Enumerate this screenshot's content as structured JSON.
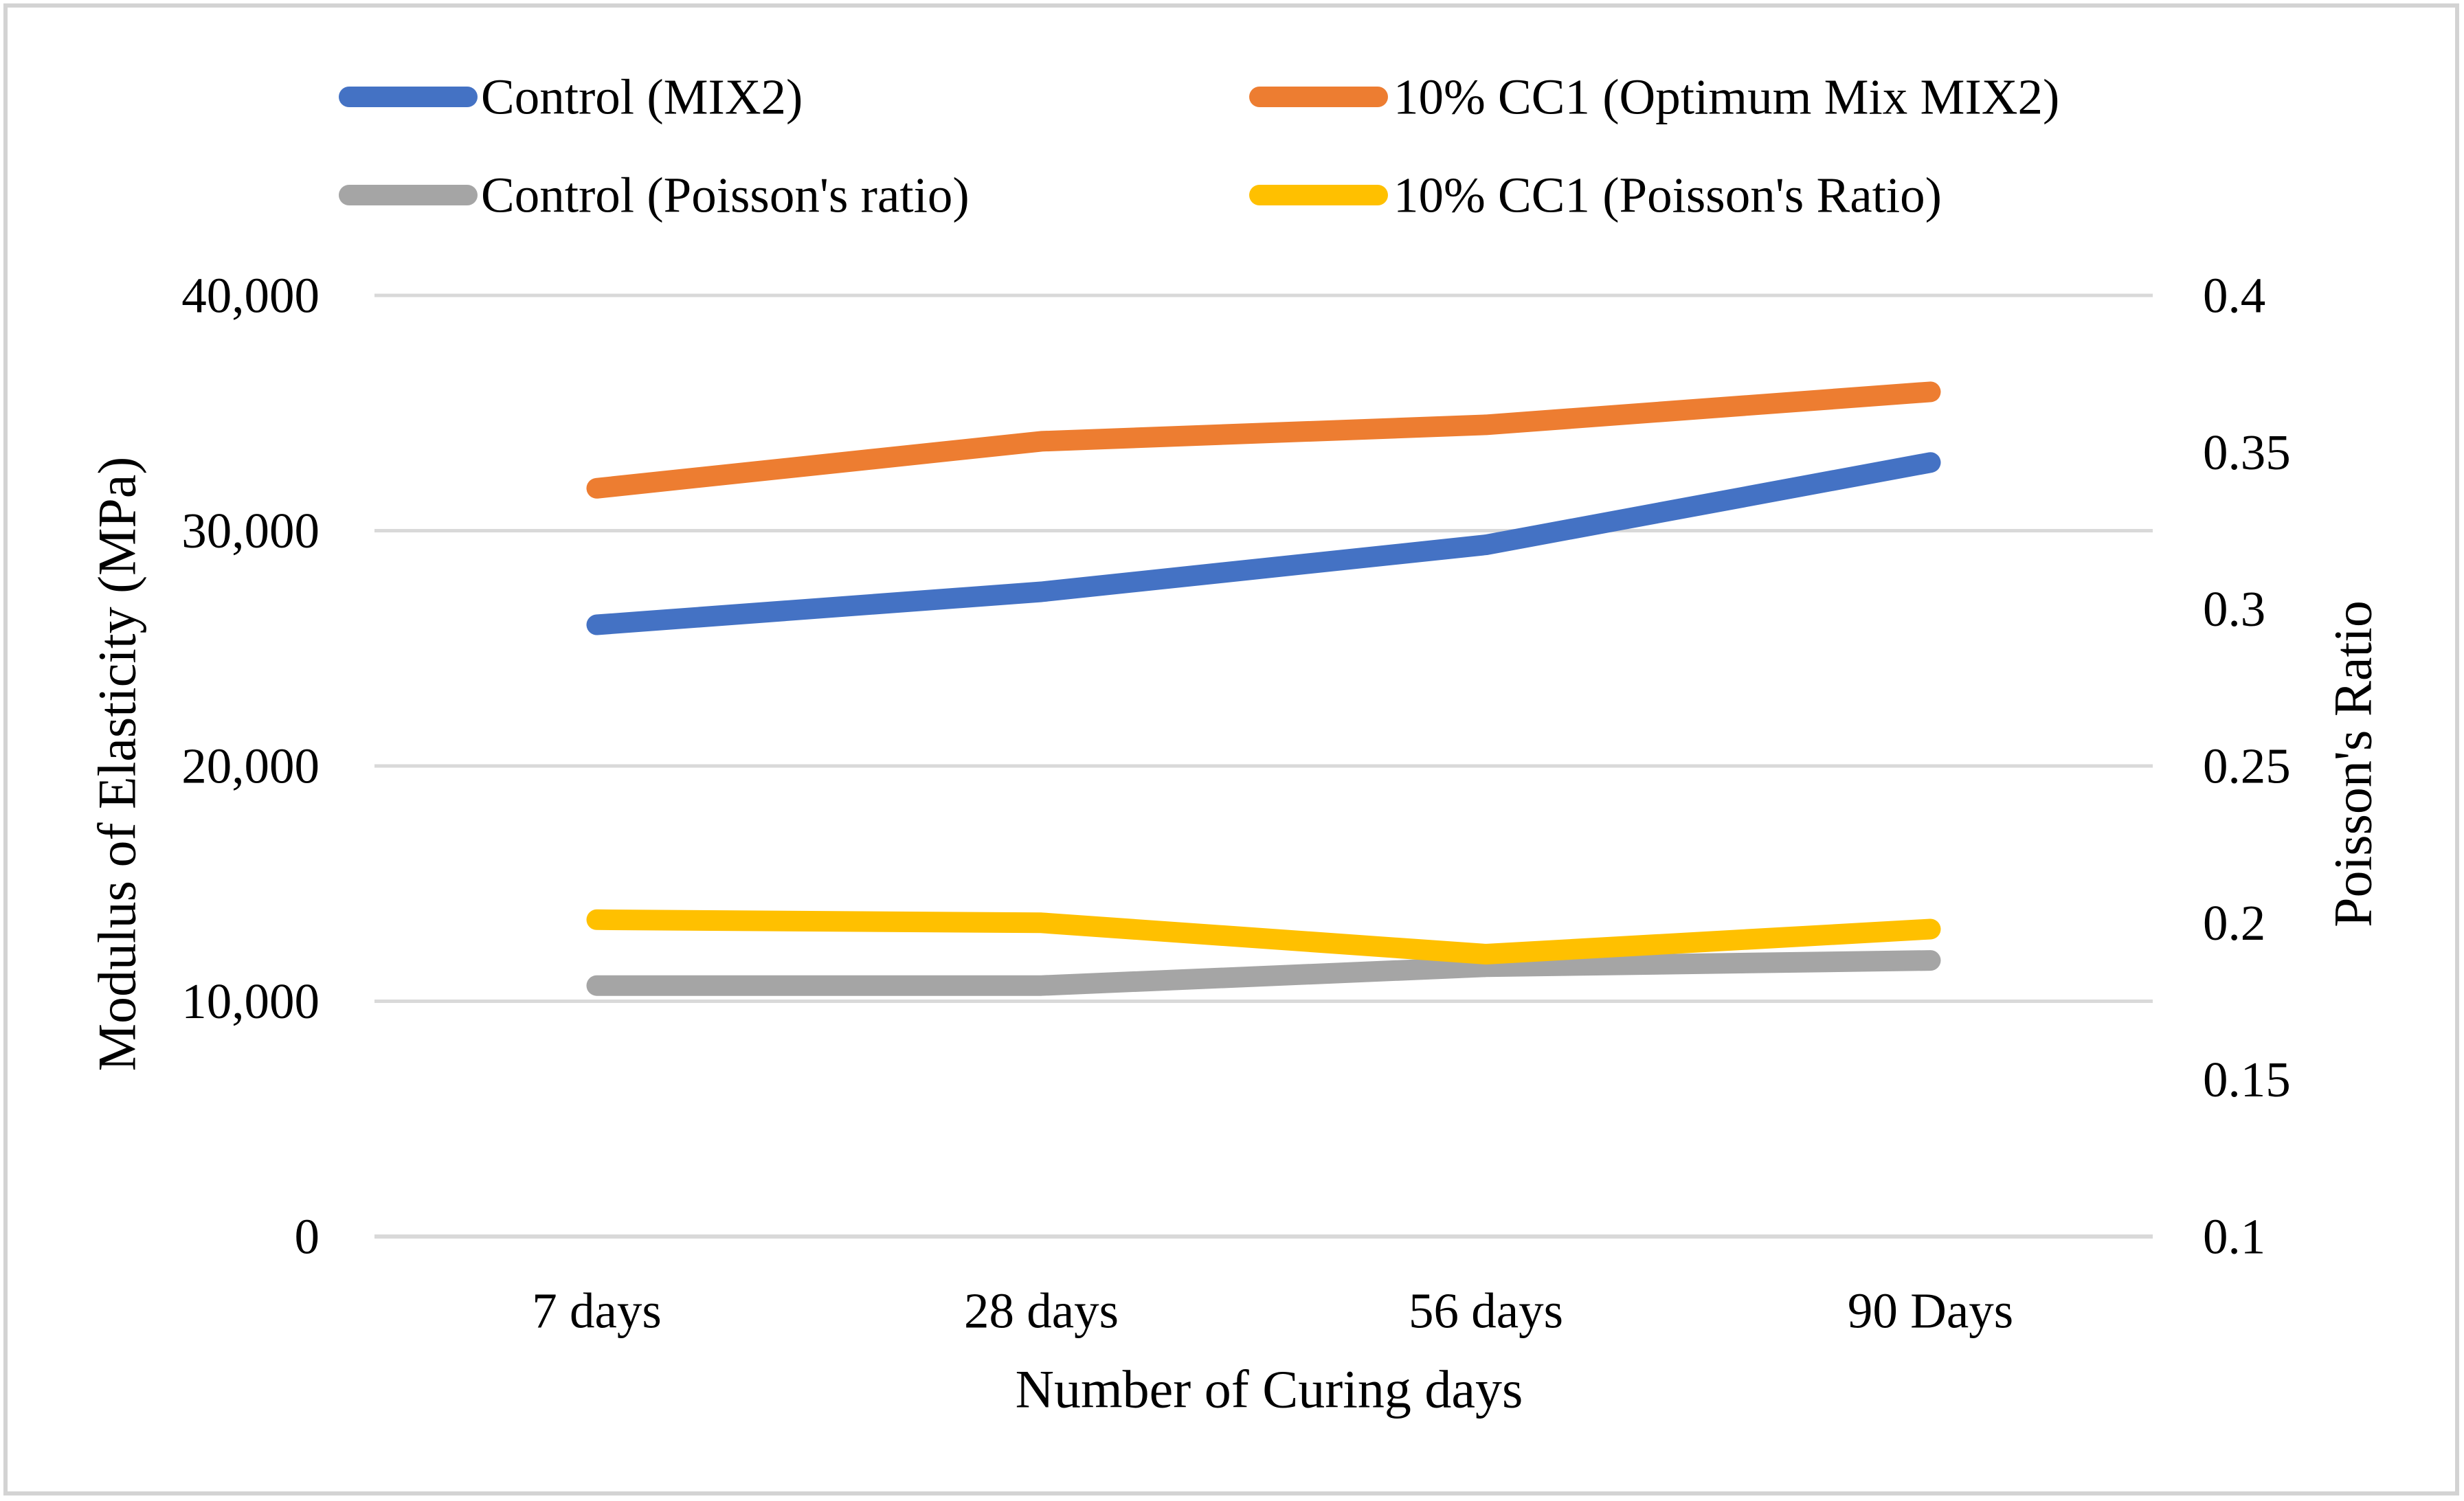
{
  "figure": {
    "background": "#FFFFFF",
    "border_color": "#D3D3D3"
  },
  "chart_data": {
    "type": "line",
    "title": "",
    "categories": [
      "7 days",
      "28 days",
      "56 days",
      "90 Days"
    ],
    "xlabel": "Number of Curing days",
    "ylabel_left": "Modulus of Elasticity (MPa)",
    "ylabel_right": "Poisson's Ratio",
    "grid": "horizontal gridlines at primary-axis ticks",
    "legend_position": "top, two columns by two rows",
    "left_axis": {
      "min": 0,
      "max": 40000,
      "tick_values": [
        40000,
        30000,
        20000,
        10000,
        0
      ],
      "tick_labels": [
        "40,000",
        "30,000",
        "20,000",
        "10,000",
        "0"
      ]
    },
    "right_axis": {
      "min": 0.1,
      "max": 0.4,
      "tick_values": [
        0.4,
        0.35,
        0.3,
        0.25,
        0.2,
        0.15,
        0.1
      ],
      "tick_labels": [
        "0.4",
        "0.35",
        "0.3",
        "0.25",
        "0.2",
        "0.15",
        "0.1"
      ]
    },
    "series": [
      {
        "name": "Control (MIX2)",
        "axis": "left",
        "color": "#4472C4",
        "values": [
          26000,
          27400,
          29400,
          32900
        ]
      },
      {
        "name": "10% CC1 (Optimum Mix MIX2)",
        "axis": "left",
        "color": "#ED7D31",
        "values": [
          31800,
          33800,
          34500,
          35900
        ]
      },
      {
        "name": "Control (Poisson's ratio)",
        "axis": "right",
        "color": "#A5A5A5",
        "values": [
          0.18,
          0.18,
          0.186,
          0.188
        ]
      },
      {
        "name": "10% CC1 (Poisson's Ratio)",
        "axis": "right",
        "color": "#FFC000",
        "values": [
          0.201,
          0.2,
          0.19,
          0.198
        ]
      }
    ],
    "colors": {
      "gridline": "#D9D9D9",
      "axis_line": "#D9D9D9",
      "text": "#000000"
    }
  }
}
